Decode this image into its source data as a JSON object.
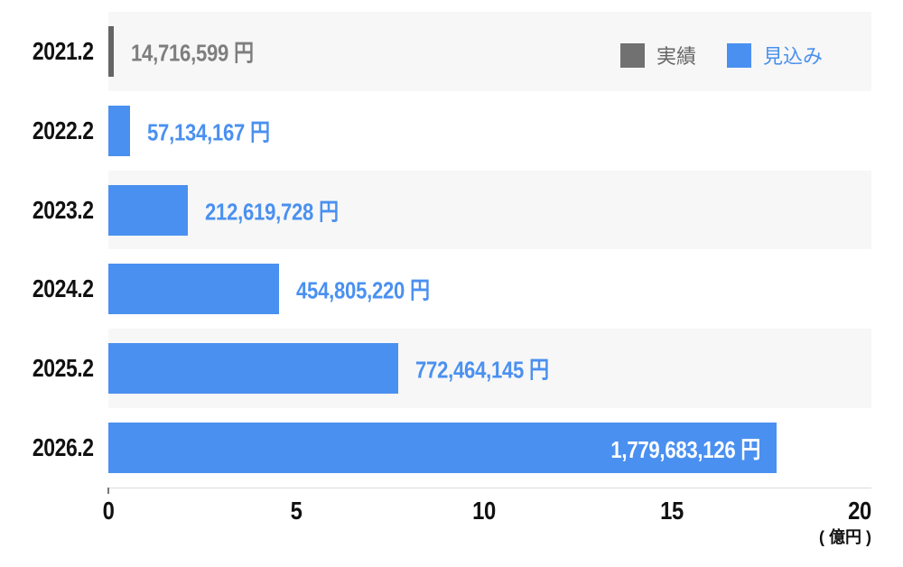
{
  "chart_data": {
    "type": "bar",
    "orientation": "horizontal",
    "title": "",
    "categories": [
      "2021.2",
      "2022.2",
      "2023.2",
      "2024.2",
      "2025.2",
      "2026.2"
    ],
    "series": [
      {
        "name": "実績",
        "color": "#656565",
        "values": [
          14716599,
          null,
          null,
          null,
          null,
          null
        ]
      },
      {
        "name": "見込み",
        "color": "#4a90f0",
        "values": [
          null,
          57134167,
          212619728,
          454805220,
          772464145,
          1779683126
        ]
      }
    ],
    "rows": [
      {
        "category": "2021.2",
        "series": "実績",
        "value_yen": 14716599,
        "label": "14,716,599 円",
        "bar_color": "#656565",
        "label_color": "#7e7e7e",
        "label_inside": false
      },
      {
        "category": "2022.2",
        "series": "見込み",
        "value_yen": 57134167,
        "label": "57,134,167 円",
        "bar_color": "#4a90f0",
        "label_color": "#4a90f0",
        "label_inside": false
      },
      {
        "category": "2023.2",
        "series": "見込み",
        "value_yen": 212619728,
        "label": "212,619,728 円",
        "bar_color": "#4a90f0",
        "label_color": "#4a90f0",
        "label_inside": false
      },
      {
        "category": "2024.2",
        "series": "見込み",
        "value_yen": 454805220,
        "label": "454,805,220 円",
        "bar_color": "#4a90f0",
        "label_color": "#4a90f0",
        "label_inside": false
      },
      {
        "category": "2025.2",
        "series": "見込み",
        "value_yen": 772464145,
        "label": "772,464,145 円",
        "bar_color": "#4a90f0",
        "label_color": "#4a90f0",
        "label_inside": false
      },
      {
        "category": "2026.2",
        "series": "見込み",
        "value_yen": 1779683126,
        "label": "1,779,683,126 円",
        "bar_color": "#4a90f0",
        "label_color": "#ffffff",
        "label_inside": true
      }
    ],
    "x_axis": {
      "tick_labels": [
        "0",
        "5",
        "10",
        "15",
        "20"
      ],
      "min": 0,
      "max_oku_yen": 20,
      "unit_label": "( 億円 )"
    },
    "legend": {
      "position": "top-right",
      "items": [
        {
          "label": "実績",
          "swatch_color": "#717171",
          "text_color": "#666666"
        },
        {
          "label": "見込み",
          "swatch_color": "#4a90f0",
          "text_color": "#4a90f0"
        }
      ]
    },
    "styles": {
      "stripe_color": "#f7f7f7",
      "axis_line_color": "#dcdcdc",
      "category_text_color": "#111111"
    }
  }
}
